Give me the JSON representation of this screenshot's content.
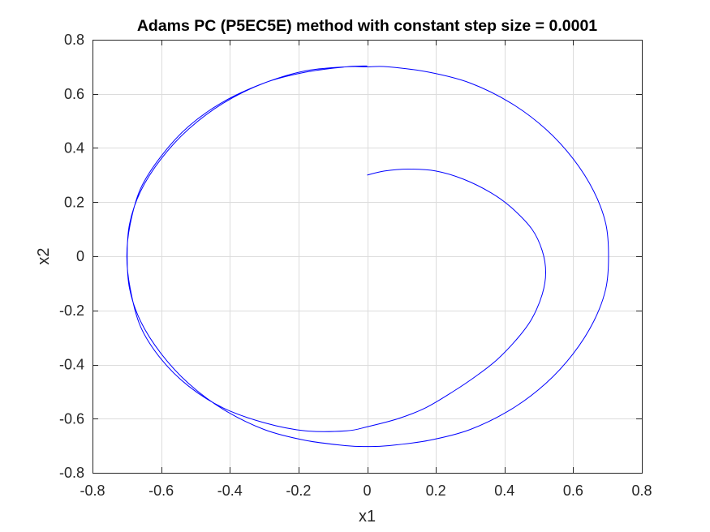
{
  "chart_data": {
    "type": "line",
    "title": "Adams PC (P5EC5E) method with constant step size = 0.0001",
    "xlabel": "x1",
    "ylabel": "x2",
    "xlim": [
      -0.8,
      0.8
    ],
    "ylim": [
      -0.8,
      0.8
    ],
    "xticks": [
      -0.8,
      -0.6,
      -0.4,
      -0.2,
      0,
      0.2,
      0.4,
      0.6,
      0.8
    ],
    "yticks": [
      -0.8,
      -0.6,
      -0.4,
      -0.2,
      0,
      0.2,
      0.4,
      0.6,
      0.8
    ],
    "xtick_labels": [
      "-0.8",
      "-0.6",
      "-0.4",
      "-0.2",
      "0",
      "0.2",
      "0.4",
      "0.6",
      "0.8"
    ],
    "ytick_labels": [
      "-0.8",
      "-0.6",
      "-0.4",
      "-0.2",
      "0",
      "0.2",
      "0.4",
      "0.6",
      "0.8"
    ],
    "grid": true,
    "box": true,
    "line_color": "#0000ff",
    "series": [
      {
        "x": [
          0,
          0.05,
          0.12,
          0.2,
          0.28,
          0.36,
          0.42,
          0.48,
          0.51,
          0.52,
          0.51,
          0.48,
          0.44,
          0.38,
          0.32,
          0.25,
          0.17,
          0.09,
          0,
          -0.06,
          -0.18,
          -0.3,
          -0.42,
          -0.52,
          -0.6,
          -0.66,
          -0.69,
          -0.7,
          -0.69,
          -0.66,
          -0.6,
          -0.52,
          -0.42,
          -0.3,
          -0.18,
          -0.06,
          0,
          0.06,
          0.18,
          0.3,
          0.42,
          0.52,
          0.6,
          0.66,
          0.695,
          0.703,
          0.695,
          0.66,
          0.6,
          0.52,
          0.42,
          0.3,
          0.18,
          0.06,
          0,
          -0.06,
          -0.18,
          -0.3,
          -0.42,
          -0.52,
          -0.6,
          -0.66,
          -0.692,
          -0.699,
          -0.692,
          -0.66,
          -0.6,
          -0.52,
          -0.42,
          -0.3,
          -0.18,
          -0.06,
          0
        ],
        "y": [
          0.3,
          0.315,
          0.322,
          0.315,
          0.285,
          0.235,
          0.18,
          0.1,
          0.02,
          -0.06,
          -0.14,
          -0.23,
          -0.3,
          -0.38,
          -0.44,
          -0.5,
          -0.56,
          -0.6,
          -0.63,
          -0.645,
          -0.645,
          -0.615,
          -0.56,
          -0.48,
          -0.38,
          -0.26,
          -0.12,
          0,
          0.12,
          0.25,
          0.37,
          0.48,
          0.57,
          0.64,
          0.685,
          0.7,
          0.7,
          0.7,
          0.68,
          0.64,
          0.565,
          0.47,
          0.36,
          0.24,
          0.12,
          0,
          -0.12,
          -0.24,
          -0.36,
          -0.47,
          -0.565,
          -0.64,
          -0.68,
          -0.7,
          -0.703,
          -0.7,
          -0.68,
          -0.64,
          -0.565,
          -0.47,
          -0.36,
          -0.24,
          -0.12,
          0,
          0.12,
          0.24,
          0.36,
          0.47,
          0.565,
          0.64,
          0.68,
          0.7,
          0.703
        ]
      }
    ]
  }
}
